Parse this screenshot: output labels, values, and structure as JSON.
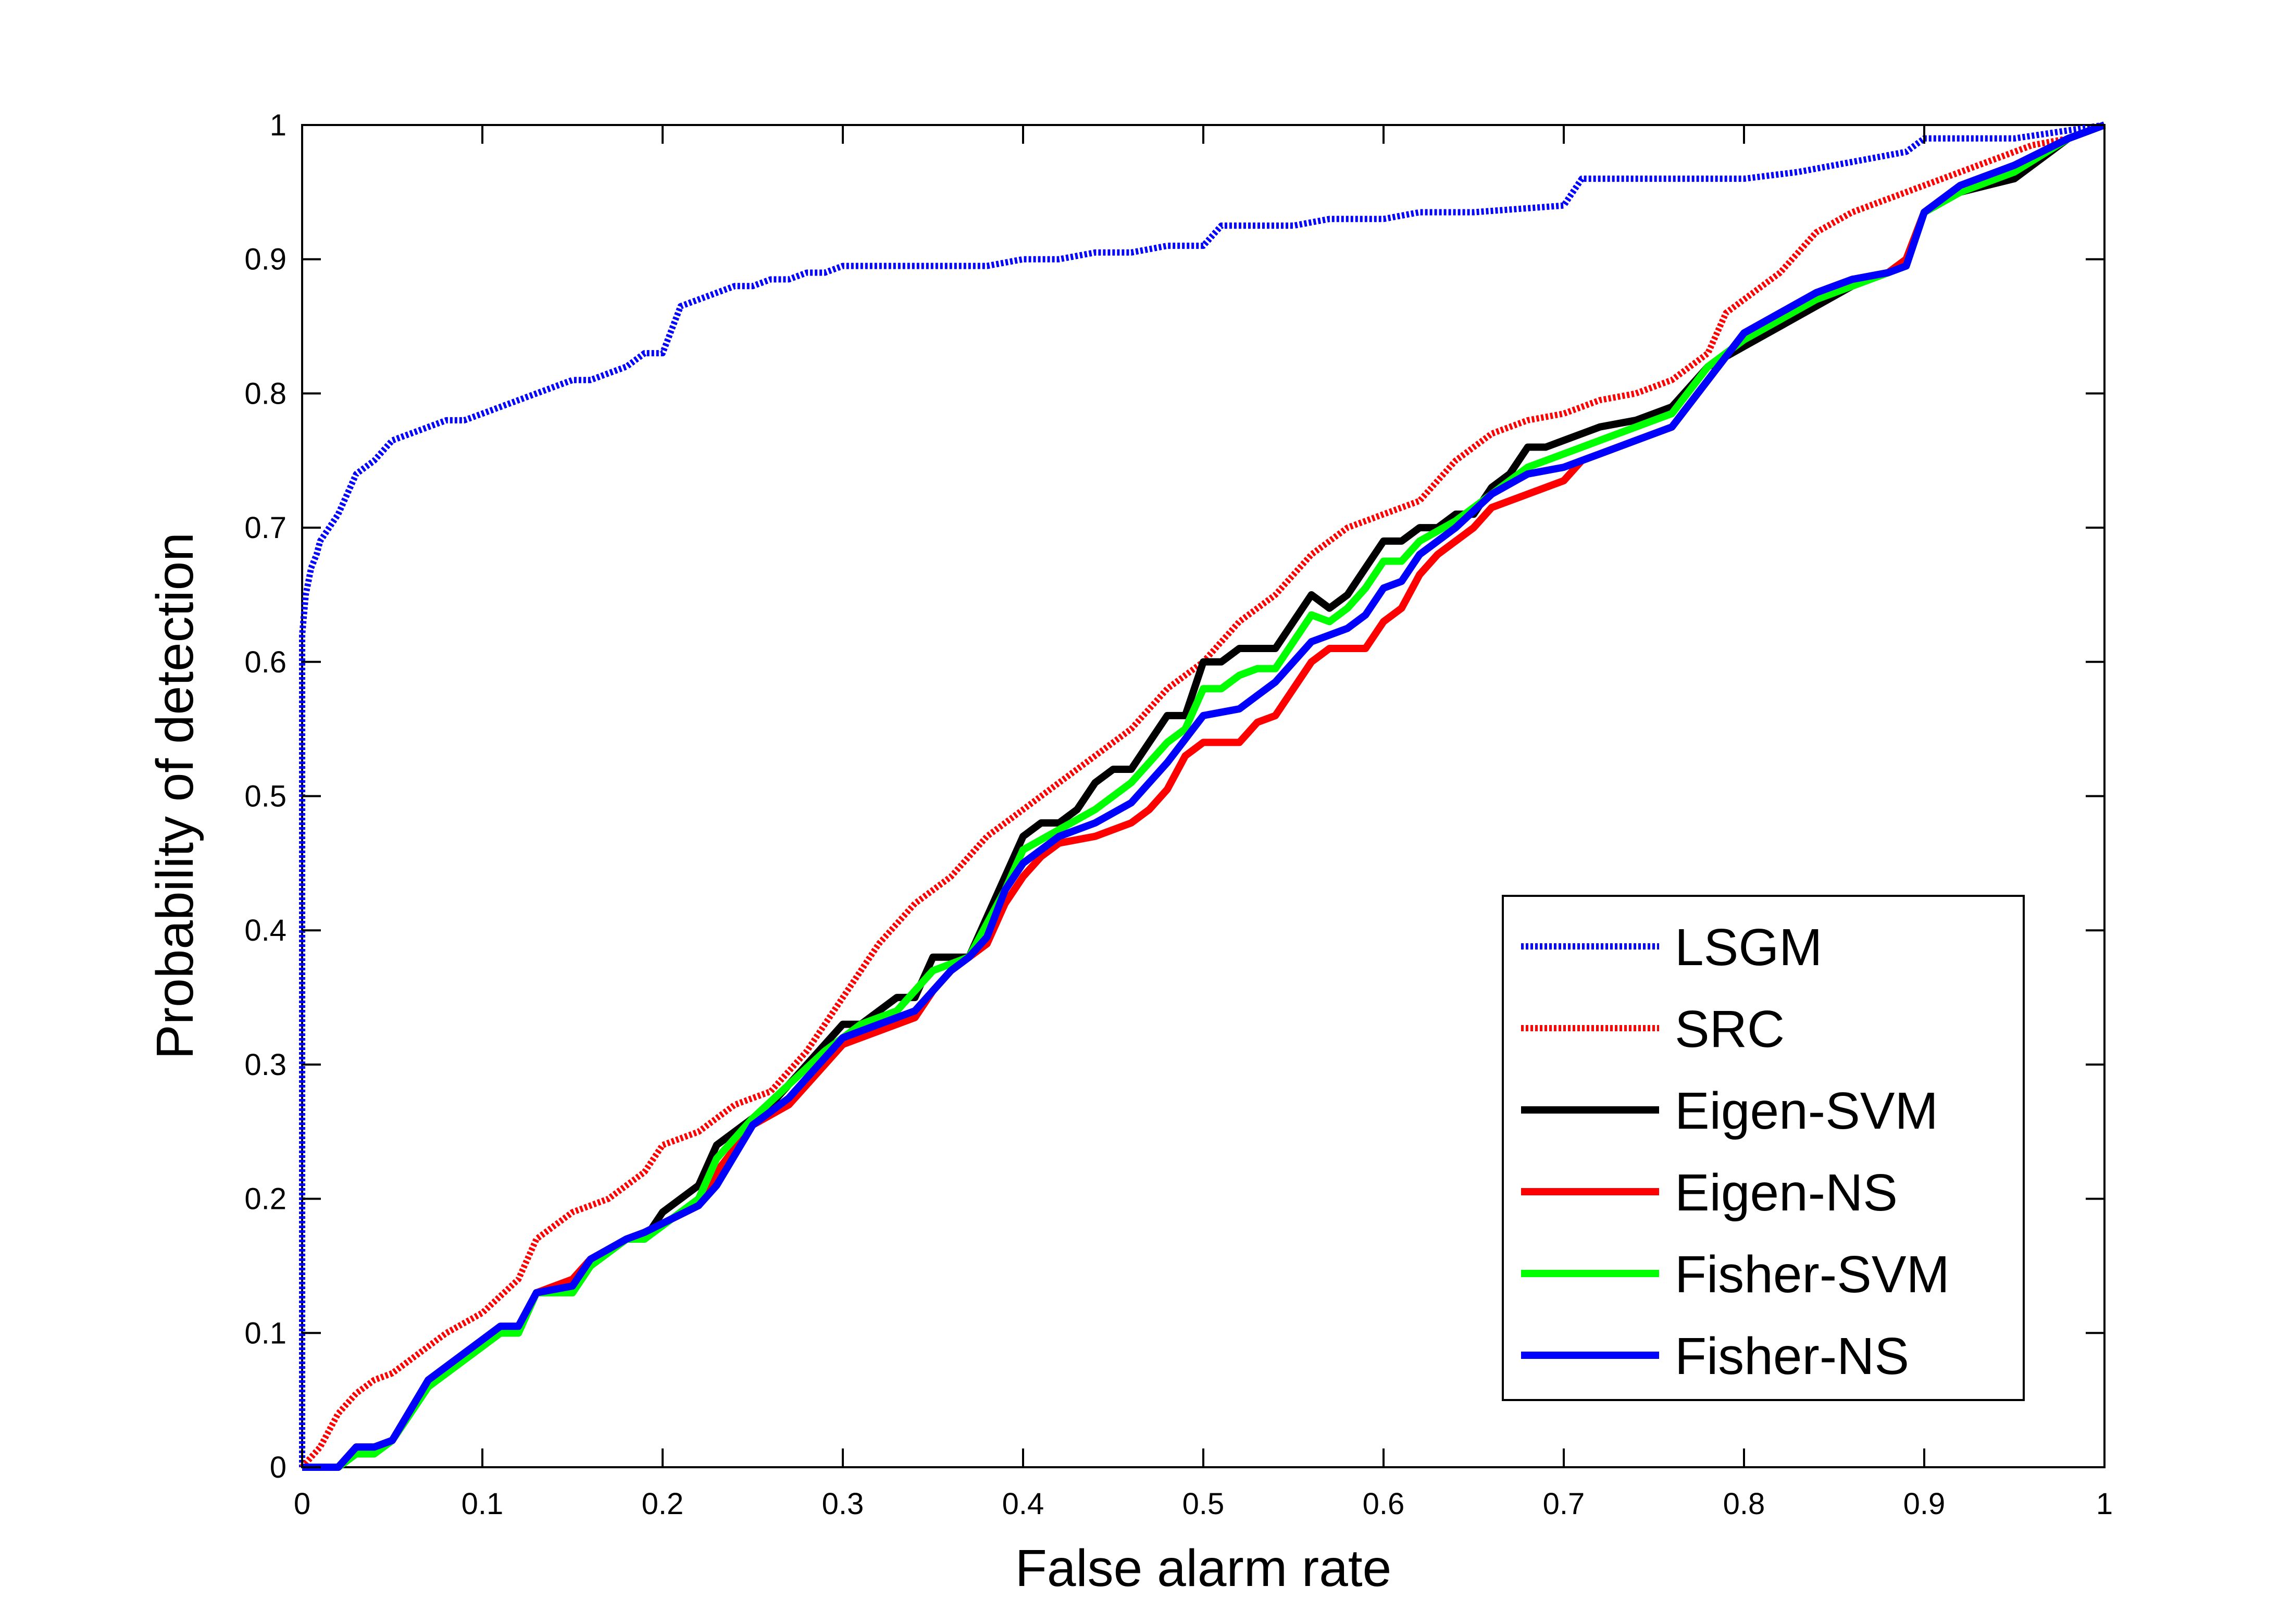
{
  "chart_data": {
    "type": "line",
    "title": "",
    "xlabel": "False alarm rate",
    "ylabel": "Probability of detection",
    "xlim": [
      0,
      1
    ],
    "ylim": [
      0,
      1
    ],
    "xticks": [
      0,
      0.1,
      0.2,
      0.3,
      0.4,
      0.5,
      0.6,
      0.7,
      0.8,
      0.9,
      1
    ],
    "yticks": [
      0,
      0.1,
      0.2,
      0.3,
      0.4,
      0.5,
      0.6,
      0.7,
      0.8,
      0.9,
      1
    ],
    "xtick_labels": [
      "0",
      "0.1",
      "0.2",
      "0.3",
      "0.4",
      "0.5",
      "0.6",
      "0.7",
      "0.8",
      "0.9",
      "1"
    ],
    "ytick_labels": [
      "0",
      "0.1",
      "0.2",
      "0.3",
      "0.4",
      "0.5",
      "0.6",
      "0.7",
      "0.8",
      "0.9",
      "1"
    ],
    "grid": false,
    "legend_position": "lower-right",
    "series": [
      {
        "name": "LSGM",
        "color": "#0000ff",
        "style": "dotted",
        "x": [
          0,
          0,
          0.002,
          0.005,
          0.008,
          0.01,
          0.015,
          0.02,
          0.03,
          0.04,
          0.05,
          0.06,
          0.07,
          0.08,
          0.09,
          0.1,
          0.11,
          0.12,
          0.13,
          0.14,
          0.15,
          0.16,
          0.17,
          0.18,
          0.19,
          0.2,
          0.21,
          0.22,
          0.23,
          0.24,
          0.25,
          0.26,
          0.27,
          0.28,
          0.29,
          0.3,
          0.32,
          0.34,
          0.36,
          0.38,
          0.4,
          0.42,
          0.44,
          0.46,
          0.48,
          0.5,
          0.51,
          0.53,
          0.55,
          0.57,
          0.6,
          0.62,
          0.65,
          0.7,
          0.71,
          0.73,
          0.75,
          0.78,
          0.8,
          0.83,
          0.85,
          0.87,
          0.89,
          0.9,
          0.92,
          0.95,
          1
        ],
        "y": [
          0,
          0.62,
          0.65,
          0.67,
          0.68,
          0.69,
          0.7,
          0.71,
          0.74,
          0.75,
          0.765,
          0.77,
          0.775,
          0.78,
          0.78,
          0.785,
          0.79,
          0.795,
          0.8,
          0.805,
          0.81,
          0.81,
          0.815,
          0.82,
          0.83,
          0.83,
          0.865,
          0.87,
          0.875,
          0.88,
          0.88,
          0.885,
          0.885,
          0.89,
          0.89,
          0.895,
          0.895,
          0.895,
          0.895,
          0.895,
          0.9,
          0.9,
          0.905,
          0.905,
          0.91,
          0.91,
          0.925,
          0.925,
          0.925,
          0.93,
          0.93,
          0.935,
          0.935,
          0.94,
          0.96,
          0.96,
          0.96,
          0.96,
          0.96,
          0.965,
          0.97,
          0.975,
          0.98,
          0.99,
          0.99,
          0.99,
          1
        ]
      },
      {
        "name": "SRC",
        "color": "#ff0000",
        "style": "dotted",
        "x": [
          0,
          0.01,
          0.02,
          0.03,
          0.04,
          0.05,
          0.06,
          0.07,
          0.08,
          0.1,
          0.12,
          0.13,
          0.14,
          0.15,
          0.17,
          0.19,
          0.2,
          0.22,
          0.24,
          0.26,
          0.28,
          0.3,
          0.32,
          0.34,
          0.36,
          0.38,
          0.4,
          0.42,
          0.44,
          0.46,
          0.48,
          0.5,
          0.52,
          0.54,
          0.56,
          0.58,
          0.6,
          0.62,
          0.64,
          0.66,
          0.68,
          0.7,
          0.72,
          0.74,
          0.76,
          0.78,
          0.79,
          0.8,
          0.82,
          0.84,
          0.86,
          0.88,
          0.9,
          0.92,
          0.94,
          0.96,
          0.98,
          1
        ],
        "y": [
          0,
          0.015,
          0.04,
          0.055,
          0.065,
          0.07,
          0.08,
          0.09,
          0.1,
          0.115,
          0.14,
          0.17,
          0.18,
          0.19,
          0.2,
          0.22,
          0.24,
          0.25,
          0.27,
          0.28,
          0.31,
          0.35,
          0.39,
          0.42,
          0.44,
          0.47,
          0.49,
          0.51,
          0.53,
          0.55,
          0.58,
          0.6,
          0.63,
          0.65,
          0.68,
          0.7,
          0.71,
          0.72,
          0.75,
          0.77,
          0.78,
          0.785,
          0.795,
          0.8,
          0.81,
          0.83,
          0.86,
          0.87,
          0.89,
          0.92,
          0.935,
          0.945,
          0.955,
          0.965,
          0.975,
          0.985,
          0.99,
          1
        ]
      },
      {
        "name": "Eigen-SVM",
        "color": "#000000",
        "style": "solid",
        "x": [
          0,
          0.02,
          0.03,
          0.04,
          0.05,
          0.07,
          0.1,
          0.11,
          0.12,
          0.13,
          0.15,
          0.16,
          0.18,
          0.19,
          0.2,
          0.22,
          0.23,
          0.26,
          0.28,
          0.3,
          0.31,
          0.33,
          0.34,
          0.35,
          0.37,
          0.39,
          0.4,
          0.41,
          0.42,
          0.43,
          0.44,
          0.45,
          0.46,
          0.47,
          0.48,
          0.49,
          0.5,
          0.51,
          0.52,
          0.53,
          0.54,
          0.55,
          0.56,
          0.57,
          0.58,
          0.59,
          0.6,
          0.61,
          0.62,
          0.63,
          0.64,
          0.65,
          0.66,
          0.67,
          0.68,
          0.69,
          0.7,
          0.72,
          0.74,
          0.76,
          0.78,
          0.8,
          0.82,
          0.84,
          0.86,
          0.88,
          0.89,
          0.9,
          0.92,
          0.95,
          0.98,
          1
        ],
        "y": [
          0,
          0,
          0.01,
          0.01,
          0.02,
          0.06,
          0.09,
          0.1,
          0.1,
          0.13,
          0.13,
          0.15,
          0.17,
          0.17,
          0.19,
          0.21,
          0.24,
          0.27,
          0.3,
          0.33,
          0.33,
          0.35,
          0.35,
          0.38,
          0.38,
          0.44,
          0.47,
          0.48,
          0.48,
          0.49,
          0.51,
          0.52,
          0.52,
          0.54,
          0.56,
          0.56,
          0.6,
          0.6,
          0.61,
          0.61,
          0.61,
          0.63,
          0.65,
          0.64,
          0.65,
          0.67,
          0.69,
          0.69,
          0.7,
          0.7,
          0.71,
          0.71,
          0.73,
          0.74,
          0.76,
          0.76,
          0.765,
          0.775,
          0.78,
          0.79,
          0.82,
          0.835,
          0.85,
          0.865,
          0.88,
          0.89,
          0.9,
          0.935,
          0.95,
          0.96,
          0.99,
          1
        ]
      },
      {
        "name": "Eigen-NS",
        "color": "#ff0000",
        "style": "solid",
        "x": [
          0,
          0.02,
          0.03,
          0.04,
          0.05,
          0.07,
          0.1,
          0.11,
          0.12,
          0.13,
          0.15,
          0.16,
          0.18,
          0.19,
          0.22,
          0.23,
          0.25,
          0.27,
          0.29,
          0.3,
          0.32,
          0.34,
          0.35,
          0.36,
          0.38,
          0.39,
          0.4,
          0.41,
          0.42,
          0.44,
          0.46,
          0.47,
          0.48,
          0.49,
          0.5,
          0.51,
          0.52,
          0.53,
          0.54,
          0.55,
          0.56,
          0.57,
          0.58,
          0.59,
          0.6,
          0.61,
          0.62,
          0.63,
          0.64,
          0.65,
          0.66,
          0.67,
          0.68,
          0.7,
          0.71,
          0.72,
          0.74,
          0.76,
          0.78,
          0.8,
          0.82,
          0.84,
          0.86,
          0.88,
          0.89,
          0.9,
          0.92,
          0.95,
          0.98,
          1
        ],
        "y": [
          0,
          0,
          0.015,
          0.015,
          0.02,
          0.065,
          0.095,
          0.105,
          0.105,
          0.13,
          0.14,
          0.155,
          0.17,
          0.175,
          0.195,
          0.22,
          0.255,
          0.27,
          0.3,
          0.315,
          0.325,
          0.335,
          0.355,
          0.37,
          0.39,
          0.42,
          0.44,
          0.455,
          0.465,
          0.47,
          0.48,
          0.49,
          0.505,
          0.53,
          0.54,
          0.54,
          0.54,
          0.555,
          0.56,
          0.58,
          0.6,
          0.61,
          0.61,
          0.61,
          0.63,
          0.64,
          0.665,
          0.68,
          0.69,
          0.7,
          0.715,
          0.72,
          0.725,
          0.735,
          0.75,
          0.755,
          0.765,
          0.775,
          0.81,
          0.845,
          0.86,
          0.875,
          0.885,
          0.89,
          0.9,
          0.935,
          0.955,
          0.97,
          0.99,
          1
        ]
      },
      {
        "name": "Fisher-SVM",
        "color": "#00ff00",
        "style": "solid",
        "x": [
          0,
          0.02,
          0.03,
          0.04,
          0.05,
          0.07,
          0.1,
          0.11,
          0.12,
          0.13,
          0.15,
          0.16,
          0.18,
          0.19,
          0.22,
          0.23,
          0.25,
          0.27,
          0.29,
          0.3,
          0.31,
          0.33,
          0.35,
          0.37,
          0.39,
          0.4,
          0.42,
          0.44,
          0.46,
          0.48,
          0.49,
          0.5,
          0.51,
          0.52,
          0.53,
          0.54,
          0.55,
          0.56,
          0.57,
          0.58,
          0.59,
          0.6,
          0.61,
          0.62,
          0.64,
          0.66,
          0.68,
          0.7,
          0.72,
          0.74,
          0.76,
          0.78,
          0.8,
          0.82,
          0.84,
          0.86,
          0.88,
          0.89,
          0.9,
          0.92,
          0.95,
          0.98,
          1
        ],
        "y": [
          0,
          0,
          0.01,
          0.01,
          0.02,
          0.06,
          0.09,
          0.1,
          0.1,
          0.13,
          0.13,
          0.15,
          0.17,
          0.17,
          0.2,
          0.23,
          0.26,
          0.285,
          0.31,
          0.32,
          0.33,
          0.34,
          0.37,
          0.38,
          0.43,
          0.46,
          0.475,
          0.49,
          0.51,
          0.54,
          0.55,
          0.58,
          0.58,
          0.59,
          0.595,
          0.595,
          0.615,
          0.635,
          0.63,
          0.64,
          0.655,
          0.675,
          0.675,
          0.69,
          0.705,
          0.725,
          0.745,
          0.755,
          0.765,
          0.775,
          0.785,
          0.82,
          0.84,
          0.855,
          0.87,
          0.88,
          0.89,
          0.895,
          0.935,
          0.95,
          0.965,
          0.99,
          1
        ]
      },
      {
        "name": "Fisher-NS",
        "color": "#0000ff",
        "style": "solid",
        "x": [
          0,
          0.02,
          0.03,
          0.04,
          0.05,
          0.07,
          0.1,
          0.11,
          0.12,
          0.13,
          0.15,
          0.16,
          0.18,
          0.19,
          0.22,
          0.23,
          0.25,
          0.27,
          0.29,
          0.3,
          0.32,
          0.34,
          0.36,
          0.37,
          0.38,
          0.39,
          0.4,
          0.42,
          0.44,
          0.46,
          0.48,
          0.5,
          0.52,
          0.53,
          0.54,
          0.55,
          0.56,
          0.58,
          0.59,
          0.6,
          0.61,
          0.62,
          0.64,
          0.66,
          0.68,
          0.7,
          0.72,
          0.74,
          0.76,
          0.78,
          0.8,
          0.82,
          0.84,
          0.86,
          0.88,
          0.89,
          0.9,
          0.92,
          0.95,
          0.98,
          1
        ],
        "y": [
          0,
          0,
          0.015,
          0.015,
          0.02,
          0.065,
          0.095,
          0.105,
          0.105,
          0.13,
          0.135,
          0.155,
          0.17,
          0.175,
          0.195,
          0.21,
          0.255,
          0.275,
          0.305,
          0.32,
          0.33,
          0.34,
          0.37,
          0.38,
          0.395,
          0.43,
          0.45,
          0.47,
          0.48,
          0.495,
          0.525,
          0.56,
          0.565,
          0.575,
          0.585,
          0.6,
          0.615,
          0.625,
          0.635,
          0.655,
          0.66,
          0.68,
          0.7,
          0.725,
          0.74,
          0.745,
          0.755,
          0.765,
          0.775,
          0.81,
          0.845,
          0.86,
          0.875,
          0.885,
          0.89,
          0.895,
          0.935,
          0.955,
          0.97,
          0.99,
          1
        ]
      }
    ]
  }
}
